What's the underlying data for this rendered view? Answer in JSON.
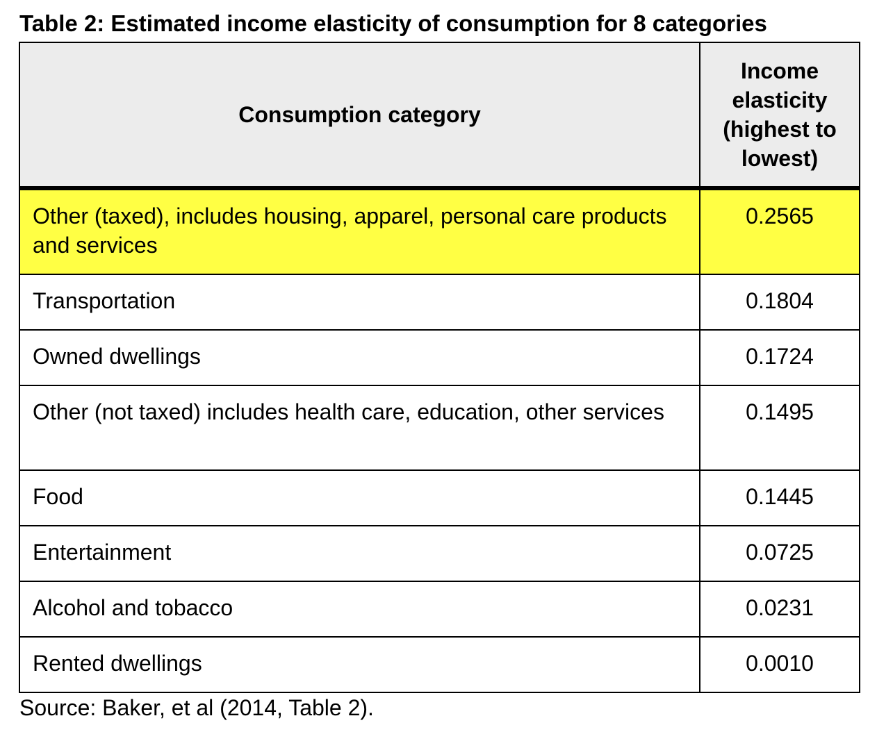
{
  "table": {
    "title": "Table 2: Estimated income elasticity of consumption for 8 categories",
    "header_category": "Consumption category",
    "header_value": "Income elasticity (highest to lowest)",
    "highlight_color": "#ffff44",
    "rows": [
      {
        "category": "Other (taxed), includes housing, apparel, personal care products and services",
        "value": "0.2565"
      },
      {
        "category": "Transportation",
        "value": "0.1804"
      },
      {
        "category": "Owned dwellings",
        "value": "0.1724"
      },
      {
        "category": "Other (not taxed) includes health care, education, other services",
        "value": "0.1495"
      },
      {
        "category": "Food",
        "value": "0.1445"
      },
      {
        "category": "Entertainment",
        "value": "0.0725"
      },
      {
        "category": "Alcohol and tobacco",
        "value": "0.0231"
      },
      {
        "category": "Rented dwellings",
        "value": "0.0010"
      }
    ],
    "source": "Source: Baker, et al (2014, Table 2)."
  }
}
